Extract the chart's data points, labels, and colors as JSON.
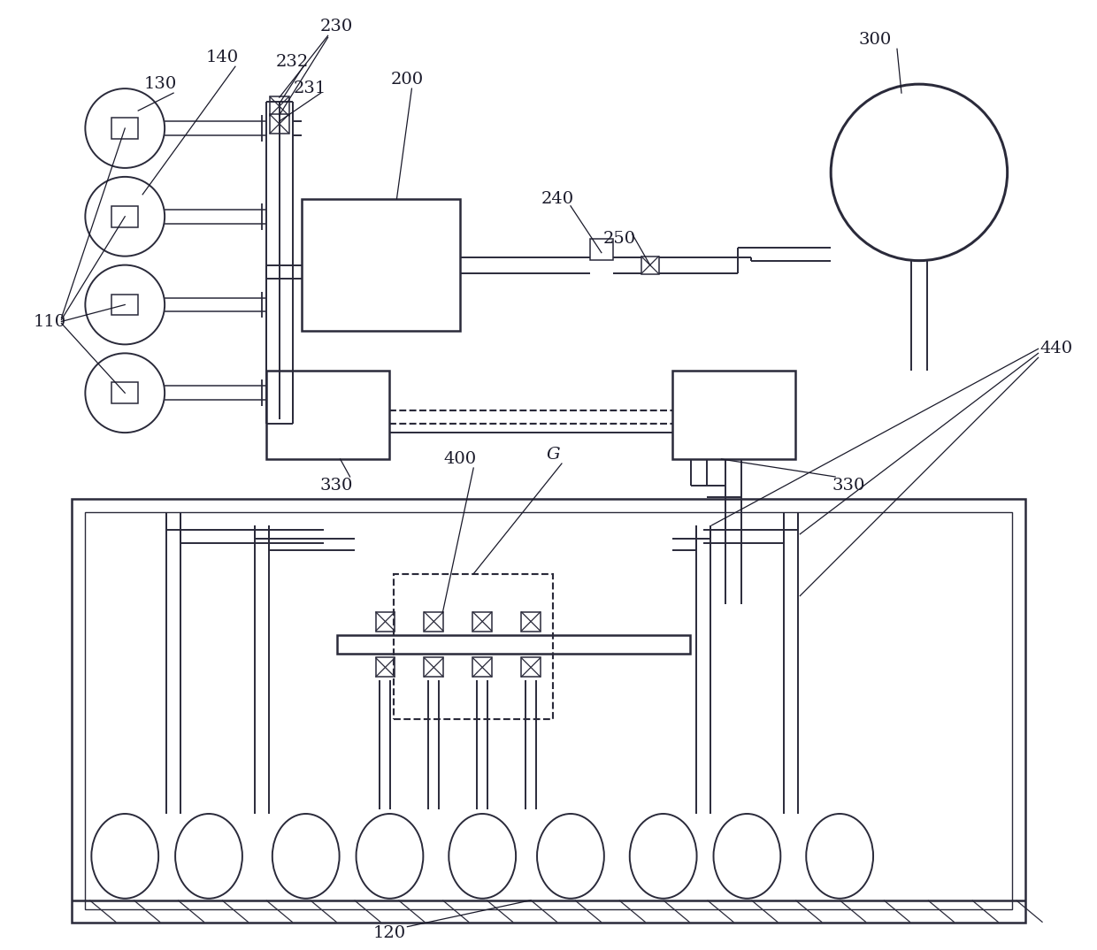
{
  "bg_color": "#ffffff",
  "line_color": "#2a2a3a",
  "lw_main": 1.8,
  "lw_pipe": 1.4,
  "lw_thin": 1.0,
  "lw_leader": 0.9,
  "label_fs": 14,
  "label_color": "#1a1a2a"
}
